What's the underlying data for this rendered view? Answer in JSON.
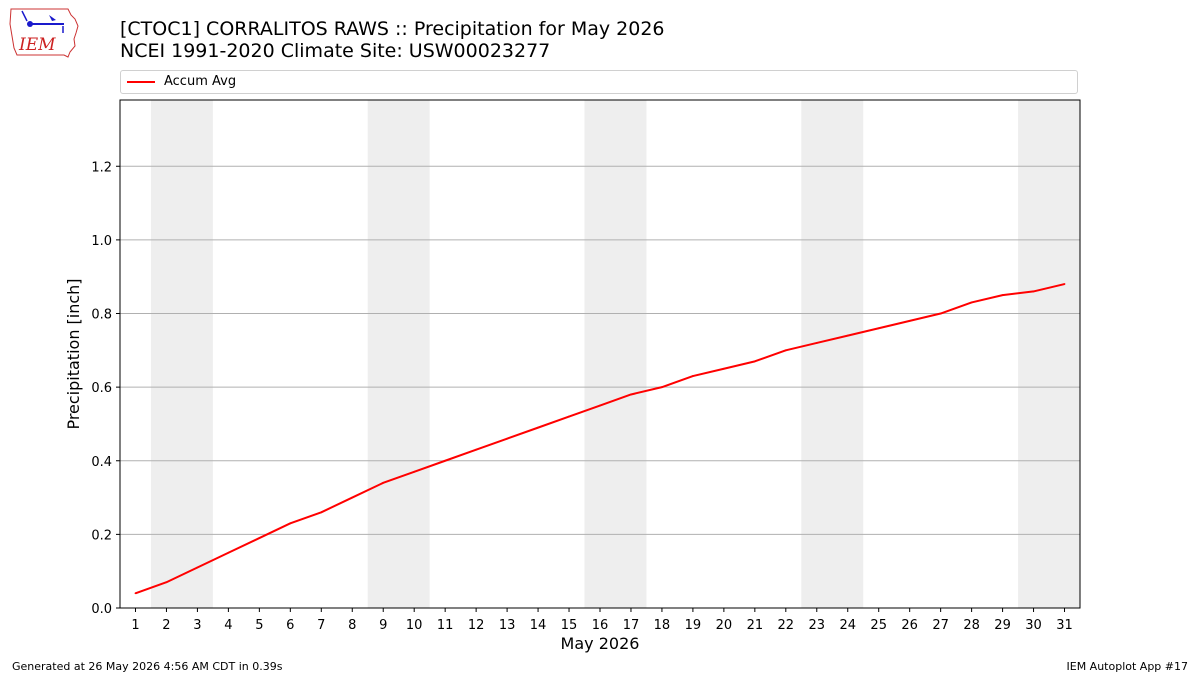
{
  "header": {
    "title_line1": "[CTOC1] CORRALITOS RAWS :: Precipitation for May 2026",
    "title_line2": "NCEI 1991-2020 Climate Site: USW00023277"
  },
  "logo": {
    "text": "IEM",
    "icon": "iem-iowa-weather-logo"
  },
  "footer": {
    "left": "Generated at 26 May 2026 4:56 AM CDT in 0.39s",
    "right": "IEM Autoplot App #17"
  },
  "colors": {
    "series": "#ff0000",
    "weekend_shade": "#eeeeee",
    "grid": "#b0b0b0"
  },
  "chart_data": {
    "type": "line",
    "title": "[CTOC1] CORRALITOS RAWS :: Precipitation for May 2026",
    "subtitle": "NCEI 1991-2020 Climate Site: USW00023277",
    "xlabel": "May 2026",
    "ylabel": "Precipitation [inch]",
    "x": [
      1,
      2,
      3,
      4,
      5,
      6,
      7,
      8,
      9,
      10,
      11,
      12,
      13,
      14,
      15,
      16,
      17,
      18,
      19,
      20,
      21,
      22,
      23,
      24,
      25,
      26,
      27,
      28,
      29,
      30,
      31
    ],
    "xlim": [
      0.5,
      31.5
    ],
    "ylim": [
      0,
      1.38
    ],
    "yticks": [
      0.0,
      0.2,
      0.4,
      0.6,
      0.8,
      1.0,
      1.2
    ],
    "ytick_labels": [
      "0.0",
      "0.2",
      "0.4",
      "0.6",
      "0.8",
      "1.0",
      "1.2"
    ],
    "grid": "horizontal",
    "legend": "top",
    "weekend_shading": [
      [
        2,
        3
      ],
      [
        9,
        10
      ],
      [
        16,
        17
      ],
      [
        23,
        24
      ],
      [
        30,
        31
      ]
    ],
    "series": [
      {
        "name": "Accum Avg",
        "color": "#ff0000",
        "values": [
          0.04,
          0.07,
          0.11,
          0.15,
          0.19,
          0.23,
          0.26,
          0.3,
          0.34,
          0.37,
          0.4,
          0.43,
          0.46,
          0.49,
          0.52,
          0.55,
          0.58,
          0.6,
          0.63,
          0.65,
          0.67,
          0.7,
          0.72,
          0.74,
          0.76,
          0.78,
          0.8,
          0.83,
          0.85,
          0.86,
          0.88
        ]
      }
    ]
  }
}
